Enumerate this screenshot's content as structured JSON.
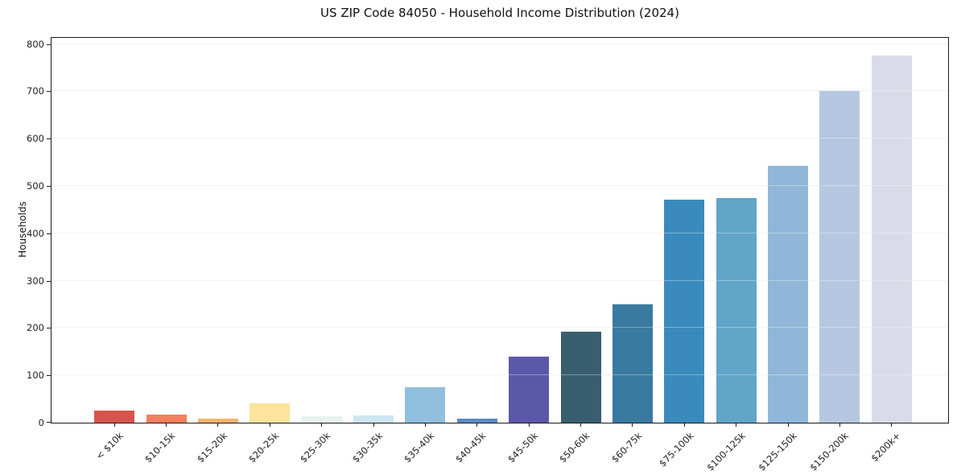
{
  "window": {
    "background": "#ffffff"
  },
  "chart_data": {
    "type": "bar",
    "title": "US ZIP Code 84050 - Household Income Distribution (2024)",
    "ylabel": "Households",
    "xlabel": "",
    "categories": [
      "< $10k",
      "$10-15k",
      "$15-20k",
      "$20-25k",
      "$25-30k",
      "$30-35k",
      "$35-40k",
      "$40-45k",
      "$45-50k",
      "$50-60k",
      "$60-75k",
      "$75-100k",
      "$100-125k",
      "$125-150k",
      "$150-200k",
      "$200k+"
    ],
    "values": [
      25,
      17,
      8,
      40,
      13,
      15,
      75,
      8,
      140,
      192,
      250,
      471,
      475,
      542,
      700,
      775
    ],
    "bar_colors": [
      "#d6544e",
      "#f47e5e",
      "#f5b36c",
      "#fce49c",
      "#e8f2ee",
      "#cde6f1",
      "#91bfde",
      "#5b8ac0",
      "#5b58a9",
      "#395e70",
      "#3a7aa0",
      "#3a8abe",
      "#61a5c8",
      "#90b7d9",
      "#b6c7e1",
      "#d9dbe8"
    ],
    "y_ticks": [
      0,
      100,
      200,
      300,
      400,
      500,
      600,
      700,
      800
    ],
    "ylim": [
      0,
      813
    ],
    "grid": "horizontal",
    "grid_color": "#ebebeb",
    "spine_color": "#1a1a1a",
    "tick_label_color": "#222222",
    "legend": "none"
  }
}
